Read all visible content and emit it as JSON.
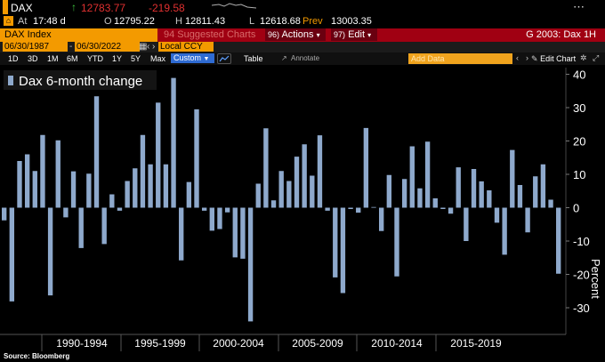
{
  "ticker": {
    "symbol": "DAX",
    "last": "12783.77",
    "change": "-219.58",
    "at_label": "At",
    "time": "17:48 d",
    "open_label": "O",
    "open": "12795.22",
    "high_label": "H",
    "high": "12811.43",
    "low_label": "L",
    "low": "12618.68",
    "prev_label": "Prev",
    "prev": "13003.35"
  },
  "command_bar": {
    "security": "DAX Index",
    "suggested": "94 Suggested Charts",
    "actions": "Actions",
    "edit": "Edit",
    "actions_num": "96)",
    "edit_num": "97)",
    "function": "G 2003: Dax 1H"
  },
  "range": {
    "start": "06/30/1987",
    "end": "06/30/2022",
    "currency": "Local CCY"
  },
  "toolbar": {
    "periods": [
      "1D",
      "3D",
      "1M",
      "6M",
      "YTD",
      "1Y",
      "5Y",
      "Max"
    ],
    "custom": "Custom",
    "table": "Table",
    "add_data": "Add Data",
    "edit_chart": "Edit Chart",
    "annotate": "Annotate"
  },
  "colors": {
    "bar": "#8ea9cc",
    "accent_red": "#a00012",
    "orange": "#f39a00"
  },
  "chart_data": {
    "type": "bar",
    "title": "",
    "legend": "Dax 6-month change",
    "ylabel": "Percent",
    "ylim": [
      -38,
      42
    ],
    "yticks": [
      -30,
      -20,
      -10,
      0,
      10,
      20,
      30,
      40
    ],
    "period_labels": [
      "1990-1994",
      "1995-1999",
      "2000-2004",
      "2005-2009",
      "2010-2014",
      "2015-2019"
    ],
    "values": [
      -3.8,
      -28.1,
      14,
      16,
      11,
      21.8,
      -26.3,
      20.2,
      -2.9,
      10.9,
      -12.1,
      10.2,
      33.4,
      -10.9,
      4,
      -0.9,
      8,
      11.8,
      21.8,
      13,
      31.5,
      13,
      38.9,
      -15.8,
      7.7,
      29.5,
      -0.9,
      -6.9,
      -6.4,
      -1.4,
      -14.9,
      -15.3,
      -34.1,
      7.2,
      23.8,
      2.2,
      11,
      8,
      15.3,
      19,
      9.6,
      21.7,
      -0.9,
      -20.9,
      -25.6,
      -0.4,
      -1.5,
      23.9,
      0.2,
      -7,
      9.8,
      -20.6,
      8.6,
      18.4,
      5.8,
      19.8,
      2.8,
      -0.4,
      -1.8,
      12.1,
      -10,
      11.6,
      7.9,
      5.2,
      -4.5,
      -14.1,
      17.3,
      6.8,
      -7.4,
      9.4,
      13,
      2.4,
      -19.8
    ],
    "source": "Source: Bloomberg"
  }
}
